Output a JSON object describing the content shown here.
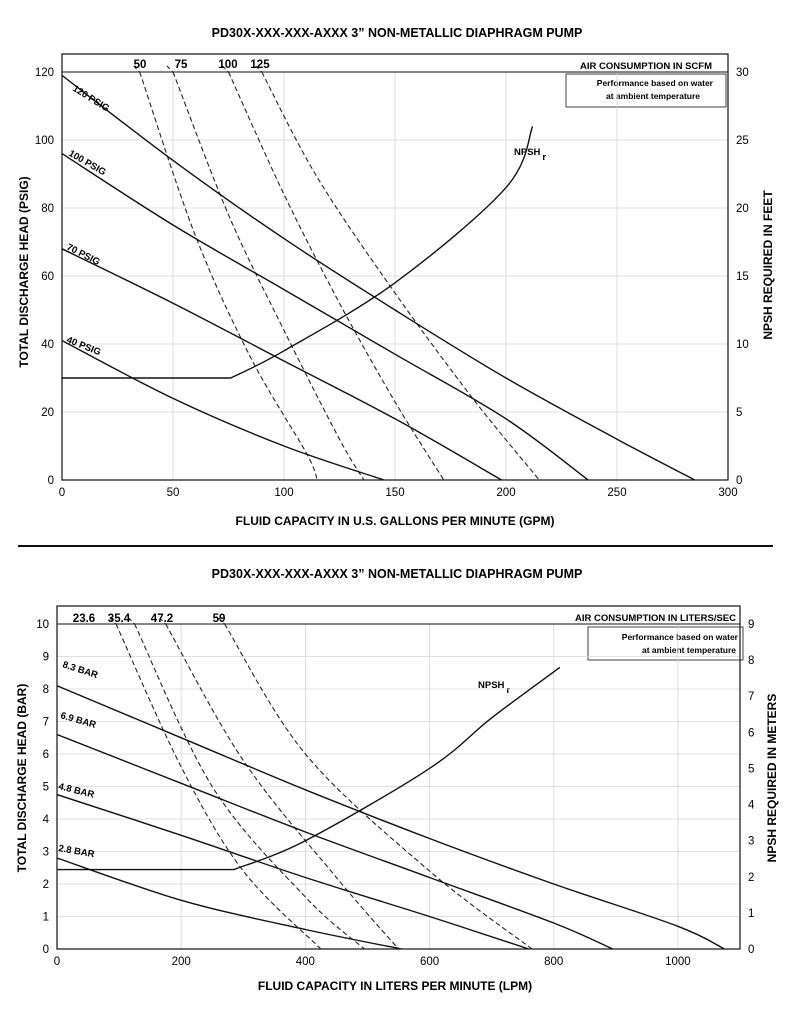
{
  "charts": [
    {
      "title": "PD30X-XXX-XXX-AXXX 3” NON-METALLIC DIAPHRAGM PUMP",
      "xlabel": "FLUID CAPACITY IN U.S. GALLONS PER MINUTE (GPM)",
      "ylabel": "TOTAL DISCHARGE HEAD (PSIG)",
      "y2label": "NPSH REQUIRED IN FEET",
      "air_title": "AIR CONSUMPTION IN SCFM",
      "note_line1": "Performance based on water",
      "note_line2": "at ambient temperature",
      "npsh_label": "NPSH",
      "npsh_sub": "r",
      "xticks": [
        "0",
        "50",
        "100",
        "150",
        "200",
        "250",
        "300"
      ],
      "yticks": [
        "0",
        "20",
        "40",
        "60",
        "80",
        "100",
        "120"
      ],
      "y2ticks": [
        "0",
        "5",
        "10",
        "15",
        "20",
        "25",
        "30"
      ],
      "air_labels": [
        "50",
        "75",
        "100",
        "125"
      ],
      "pressure_labels": [
        "120 PSIG",
        "100 PSIG",
        "70 PSIG",
        "40 PSIG"
      ]
    },
    {
      "title": "PD30X-XXX-XXX-AXXX 3” NON-METALLIC DIAPHRAGM PUMP",
      "xlabel": "FLUID CAPACITY IN LITERS PER MINUTE (LPM)",
      "ylabel": "TOTAL DISCHARGE HEAD (BAR)",
      "y2label": "NPSH REQUIRED IN METERS",
      "air_title": "AIR CONSUMPTION IN LITERS/SEC",
      "note_line1": "Performance based on water",
      "note_line2": "at ambient temperature",
      "npsh_label": "NPSH",
      "npsh_sub": "r",
      "xticks": [
        "0",
        "200",
        "400",
        "600",
        "800",
        "1000"
      ],
      "yticks": [
        "0",
        "1",
        "2",
        "3",
        "4",
        "5",
        "6",
        "7",
        "8",
        "9",
        "10"
      ],
      "y2ticks": [
        "0",
        "1",
        "2",
        "3",
        "4",
        "5",
        "6",
        "7",
        "8",
        "9"
      ],
      "air_labels": [
        "23.6",
        "35.4",
        "47.2",
        "59"
      ],
      "pressure_labels": [
        "8.3 BAR",
        "6.9 BAR",
        "4.8 BAR",
        "2.8 BAR"
      ]
    }
  ],
  "chart_data": [
    {
      "type": "line",
      "title": "PD30X-XXX-XXX-AXXX 3” NON-METALLIC DIAPHRAGM PUMP",
      "xlabel": "FLUID CAPACITY IN U.S. GALLONS PER MINUTE (GPM)",
      "ylabel": "TOTAL DISCHARGE HEAD (PSIG)",
      "y2label": "NPSH REQUIRED IN FEET",
      "xlim": [
        0,
        300
      ],
      "ylim": [
        0,
        120
      ],
      "y2lim": [
        0,
        30
      ],
      "grid": true,
      "series": [
        {
          "name": "120 PSIG",
          "x": [
            0,
            50,
            100,
            150,
            200,
            250,
            285
          ],
          "y": [
            119,
            94,
            71,
            50,
            30,
            12,
            0
          ]
        },
        {
          "name": "100 PSIG",
          "x": [
            0,
            50,
            100,
            150,
            200,
            237
          ],
          "y": [
            96,
            75,
            56,
            37,
            18,
            0
          ]
        },
        {
          "name": "70 PSIG",
          "x": [
            0,
            50,
            100,
            150,
            198
          ],
          "y": [
            68,
            52,
            35,
            18,
            0
          ]
        },
        {
          "name": "40 PSIG",
          "x": [
            0,
            50,
            100,
            145
          ],
          "y": [
            41,
            24,
            10,
            0
          ]
        }
      ],
      "air_consumption": [
        {
          "name": "50",
          "x": [
            35,
            60,
            85,
            110,
            115
          ],
          "y": [
            120,
            72,
            36,
            8,
            0
          ]
        },
        {
          "name": "75",
          "x": [
            50,
            75,
            100,
            125,
            136
          ],
          "y": [
            120,
            78,
            44,
            12,
            0
          ]
        },
        {
          "name": "100",
          "x": [
            75,
            100,
            125,
            150,
            172
          ],
          "y": [
            120,
            84,
            52,
            23,
            0
          ]
        },
        {
          "name": "125",
          "x": [
            90,
            115,
            150,
            185,
            215
          ],
          "y": [
            120,
            89,
            55,
            24,
            0
          ]
        }
      ],
      "npsh_required": {
        "axis": "y2",
        "x": [
          0,
          76,
          100,
          150,
          200,
          212
        ],
        "y": [
          7.5,
          7.5,
          9.5,
          14.5,
          21.5,
          26
        ]
      }
    },
    {
      "type": "line",
      "title": "PD30X-XXX-XXX-AXXX 3” NON-METALLIC DIAPHRAGM PUMP",
      "xlabel": "FLUID CAPACITY IN LITERS PER MINUTE (LPM)",
      "ylabel": "TOTAL DISCHARGE HEAD (BAR)",
      "y2label": "NPSH REQUIRED IN METERS",
      "xlim": [
        0,
        1100
      ],
      "ylim": [
        0,
        10
      ],
      "y2lim": [
        0,
        9
      ],
      "grid": true,
      "series": [
        {
          "name": "8.3 BAR",
          "x": [
            0,
            200,
            400,
            600,
            800,
            1000,
            1075
          ],
          "y": [
            8.1,
            6.5,
            4.9,
            3.4,
            2.0,
            0.7,
            0
          ]
        },
        {
          "name": "6.9 BAR",
          "x": [
            0,
            200,
            400,
            600,
            800,
            895
          ],
          "y": [
            6.6,
            5.1,
            3.6,
            2.2,
            0.8,
            0
          ]
        },
        {
          "name": "4.8 BAR",
          "x": [
            0,
            200,
            400,
            600,
            760
          ],
          "y": [
            4.75,
            3.5,
            2.2,
            1.0,
            0
          ]
        },
        {
          "name": "2.8 BAR",
          "x": [
            0,
            200,
            400,
            555
          ],
          "y": [
            2.8,
            1.5,
            0.6,
            0
          ]
        }
      ],
      "air_consumption": [
        {
          "name": "23.6",
          "x": [
            95,
            200,
            300,
            425
          ],
          "y": [
            10,
            5.6,
            2.4,
            0
          ]
        },
        {
          "name": "35.4",
          "x": [
            125,
            250,
            400,
            495
          ],
          "y": [
            10,
            5.0,
            1.6,
            0
          ]
        },
        {
          "name": "47.2",
          "x": [
            175,
            300,
            450,
            550
          ],
          "y": [
            10,
            5.8,
            2.2,
            0
          ]
        },
        {
          "name": "59",
          "x": [
            270,
            400,
            600,
            765
          ],
          "y": [
            10,
            6.0,
            2.4,
            0
          ]
        }
      ],
      "npsh_required": {
        "axis": "y2",
        "x": [
          0,
          285,
          400,
          600,
          700,
          810
        ],
        "y": [
          2.2,
          2.2,
          3.0,
          5.0,
          6.4,
          7.8
        ]
      }
    }
  ]
}
